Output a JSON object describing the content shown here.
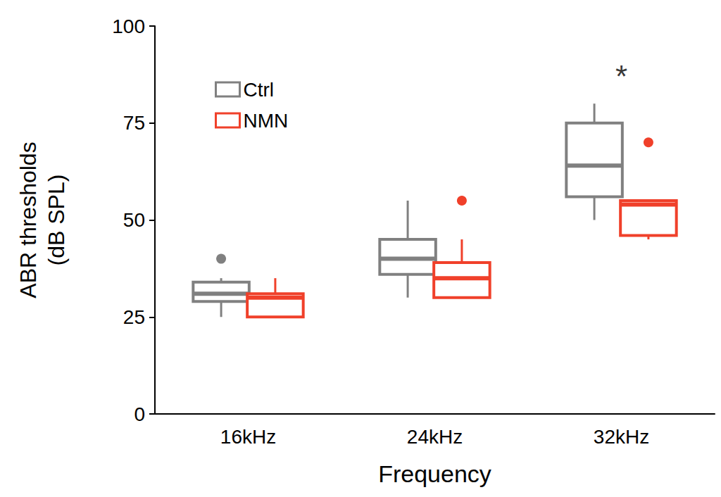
{
  "chart_data": {
    "type": "boxplot",
    "x_label": "Frequency",
    "y_label": "ABR thresholds\n(dB SPL)",
    "categories": [
      "16kHz",
      "24kHz",
      "32kHz"
    ],
    "series": [
      {
        "name": "Ctrl",
        "color": "#808080",
        "values": [
          [
            25,
            29,
            31,
            34,
            35
          ],
          [
            30,
            36,
            40,
            45,
            55
          ],
          [
            50,
            56,
            64,
            75,
            80
          ]
        ],
        "outliers": [
          [
            40
          ],
          [],
          []
        ]
      },
      {
        "name": "NMN",
        "color": "#f0402a",
        "values": [
          [
            25,
            25,
            30,
            31,
            35
          ],
          [
            30,
            30,
            35,
            39,
            45
          ],
          [
            45,
            46,
            54,
            55,
            55
          ]
        ],
        "outliers": [
          [],
          [
            55
          ],
          [
            70
          ]
        ]
      }
    ],
    "annotations": [
      {
        "text": "*",
        "category": "32kHz",
        "y": 87
      }
    ],
    "ylim": [
      0,
      100
    ],
    "yticks": [
      0,
      25,
      50,
      75,
      100
    ],
    "grid": false,
    "legend": "upper left"
  }
}
